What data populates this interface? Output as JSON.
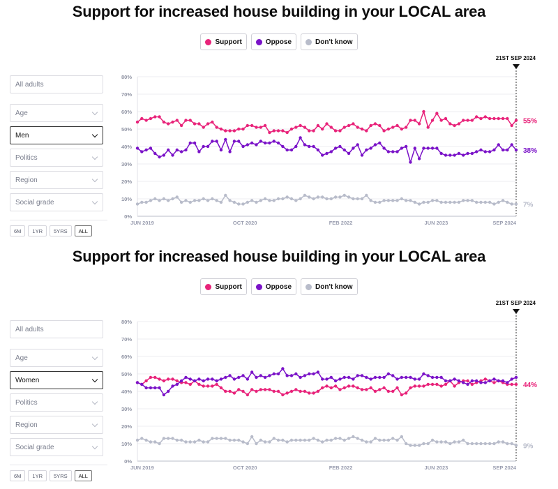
{
  "charts": [
    {
      "title": "Support for increased house building in your LOCAL area",
      "legend": [
        "Support",
        "Oppose",
        "Don't know"
      ],
      "filters": {
        "all_adults": "All adults",
        "age": "Age",
        "selected": "Men",
        "politics": "Politics",
        "region": "Region",
        "social_grade": "Social grade"
      },
      "ranges": [
        "6M",
        "1YR",
        "5YRS",
        "ALL"
      ],
      "active_range": "ALL",
      "marker_label": "21ST SEP 2024",
      "end_labels": [
        "55%",
        "38%",
        "7%"
      ]
    },
    {
      "title": "Support for increased house building in your LOCAL area",
      "legend": [
        "Support",
        "Oppose",
        "Don't know"
      ],
      "filters": {
        "all_adults": "All adults",
        "age": "Age",
        "selected": "Women",
        "politics": "Politics",
        "region": "Region",
        "social_grade": "Social grade"
      },
      "ranges": [
        "6M",
        "1YR",
        "5YRS",
        "ALL"
      ],
      "active_range": "ALL",
      "marker_label": "21ST SEP 2024",
      "end_labels": [
        "44%",
        "",
        "9%"
      ]
    }
  ],
  "colors": {
    "support": "#e8237a",
    "oppose": "#7a12c8",
    "dontknow": "#b8bcca"
  },
  "chart_data": [
    {
      "type": "line",
      "title": "Support for increased house building in your LOCAL area",
      "subgroup": "Men",
      "x_ticks": [
        "JUN 2019",
        "OCT 2020",
        "FEB 2022",
        "JUN 2023",
        "SEP 2024"
      ],
      "y_ticks": [
        "0%",
        "10%",
        "20%",
        "30%",
        "40%",
        "50%",
        "60%",
        "70%",
        "80%"
      ],
      "ylim": [
        0,
        80
      ],
      "series": [
        {
          "name": "Support",
          "values": [
            54,
            56,
            55,
            56,
            57,
            57,
            54,
            53,
            54,
            55,
            52,
            55,
            55,
            53,
            53,
            51,
            53,
            54,
            51,
            50,
            49,
            49,
            49,
            50,
            50,
            52,
            52,
            51,
            51,
            52,
            48,
            49,
            49,
            49,
            48,
            50,
            51,
            52,
            51,
            49,
            49,
            52,
            50,
            53,
            51,
            49,
            49,
            51,
            52,
            53,
            51,
            50,
            49,
            52,
            53,
            52,
            49,
            50,
            51,
            52,
            50,
            51,
            55,
            55,
            53,
            60,
            51,
            55,
            59,
            55,
            56,
            53,
            52,
            53,
            55,
            55,
            55,
            57,
            56,
            57,
            56,
            56,
            56,
            56,
            56,
            52,
            55
          ]
        },
        {
          "name": "Oppose",
          "values": [
            39,
            37,
            38,
            39,
            36,
            34,
            35,
            38,
            35,
            38,
            37,
            38,
            42,
            42,
            37,
            40,
            40,
            43,
            43,
            38,
            44,
            37,
            43,
            43,
            40,
            41,
            42,
            41,
            43,
            42,
            42,
            43,
            42,
            40,
            38,
            38,
            40,
            45,
            41,
            40,
            40,
            38,
            35,
            36,
            37,
            39,
            40,
            38,
            36,
            39,
            41,
            35,
            38,
            39,
            41,
            42,
            39,
            37,
            37,
            37,
            39,
            40,
            31,
            39,
            33,
            39,
            39,
            39,
            39,
            36,
            35,
            35,
            35,
            36,
            35,
            36,
            36,
            37,
            38,
            37,
            37,
            38,
            41,
            38,
            38,
            41,
            38
          ]
        },
        {
          "name": "Don't know",
          "values": [
            7,
            8,
            8,
            9,
            10,
            9,
            10,
            9,
            10,
            11,
            8,
            9,
            8,
            9,
            9,
            10,
            9,
            10,
            9,
            8,
            12,
            9,
            8,
            7,
            7,
            8,
            9,
            8,
            9,
            10,
            9,
            9,
            10,
            10,
            11,
            10,
            9,
            10,
            12,
            11,
            10,
            11,
            11,
            10,
            10,
            11,
            11,
            12,
            11,
            10,
            10,
            10,
            12,
            9,
            8,
            8,
            9,
            9,
            9,
            9,
            10,
            9,
            9,
            8,
            7,
            8,
            8,
            9,
            9,
            8,
            8,
            8,
            8,
            8,
            9,
            9,
            9,
            8,
            8,
            8,
            8,
            7,
            8,
            9,
            8,
            7,
            7
          ]
        }
      ]
    },
    {
      "type": "line",
      "title": "Support for increased house building in your LOCAL area",
      "subgroup": "Women",
      "x_ticks": [
        "JUN 2019",
        "OCT 2020",
        "FEB 2022",
        "JUN 2023",
        "SEP 2024"
      ],
      "y_ticks": [
        "0%",
        "10%",
        "20%",
        "30%",
        "40%",
        "50%",
        "60%",
        "70%",
        "80%"
      ],
      "ylim": [
        0,
        80
      ],
      "series": [
        {
          "name": "Support",
          "values": [
            45,
            44,
            46,
            48,
            48,
            47,
            46,
            47,
            47,
            46,
            45,
            45,
            44,
            46,
            44,
            43,
            43,
            43,
            44,
            42,
            40,
            40,
            39,
            41,
            40,
            38,
            41,
            40,
            41,
            41,
            41,
            40,
            40,
            38,
            39,
            40,
            41,
            40,
            40,
            39,
            39,
            40,
            42,
            43,
            42,
            43,
            41,
            42,
            43,
            43,
            42,
            41,
            41,
            42,
            40,
            41,
            42,
            40,
            40,
            42,
            38,
            39,
            42,
            43,
            43,
            43,
            44,
            44,
            44,
            43,
            44,
            46,
            43,
            45,
            46,
            46,
            44,
            45,
            46,
            47,
            46,
            45,
            46,
            45,
            44,
            44,
            44
          ]
        },
        {
          "name": "Oppose",
          "values": [
            45,
            44,
            42,
            42,
            42,
            42,
            38,
            40,
            43,
            44,
            46,
            48,
            47,
            46,
            47,
            46,
            47,
            47,
            46,
            47,
            48,
            49,
            47,
            48,
            49,
            47,
            51,
            48,
            49,
            48,
            49,
            50,
            50,
            53,
            49,
            49,
            50,
            48,
            49,
            50,
            50,
            51,
            47,
            47,
            48,
            46,
            47,
            48,
            48,
            47,
            49,
            49,
            48,
            47,
            48,
            48,
            48,
            50,
            49,
            47,
            48,
            48,
            48,
            47,
            47,
            50,
            49,
            48,
            48,
            48,
            46,
            46,
            47,
            46,
            45,
            44,
            46,
            46,
            45,
            45,
            46,
            47,
            46,
            46,
            45,
            47,
            48
          ]
        },
        {
          "name": "Don't know",
          "values": [
            12,
            13,
            12,
            11,
            11,
            10,
            13,
            13,
            13,
            12,
            12,
            11,
            11,
            11,
            12,
            11,
            11,
            13,
            13,
            13,
            13,
            12,
            12,
            12,
            11,
            10,
            14,
            10,
            12,
            11,
            11,
            13,
            12,
            12,
            11,
            12,
            12,
            12,
            12,
            12,
            13,
            12,
            11,
            12,
            12,
            13,
            13,
            12,
            13,
            14,
            13,
            12,
            11,
            11,
            13,
            12,
            12,
            12,
            13,
            12,
            14,
            10,
            9,
            9,
            9,
            10,
            10,
            12,
            11,
            11,
            11,
            10,
            11,
            11,
            12,
            10,
            10,
            10,
            10,
            10,
            10,
            10,
            11,
            11,
            10,
            10,
            9
          ]
        }
      ]
    }
  ]
}
